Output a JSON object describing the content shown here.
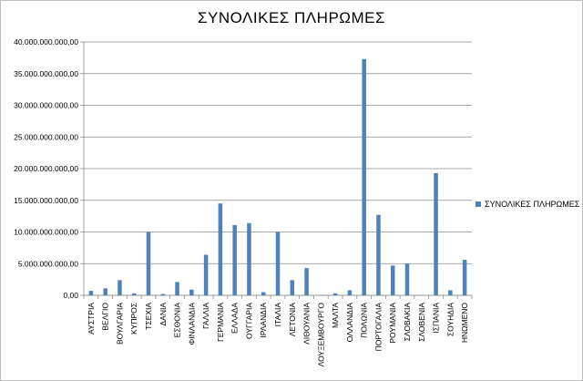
{
  "chart_data": {
    "type": "bar",
    "title": "ΣΥΝΟΛΙΚΕΣ ΠΛΗΡΩΜΕΣ",
    "xlabel": "",
    "ylabel": "",
    "ylim": [
      0,
      40000000000
    ],
    "yticks": [
      0,
      5000000000,
      10000000000,
      15000000000,
      20000000000,
      25000000000,
      30000000000,
      35000000000,
      40000000000
    ],
    "ytick_labels": [
      "0,00",
      "5.000.000.000,00",
      "10.000.000.000,00",
      "15.000.000.000,00",
      "20.000.000.000,00",
      "25.000.000.000,00",
      "30.000.000.000,00",
      "35.000.000.000,00",
      "40.000.000.000,00"
    ],
    "grid": true,
    "legend_position": "right",
    "categories": [
      "ΑΥΣΤΡΙΑ",
      "ΒΕΛΓΙΟ",
      "ΒΟΥΛΓΑΡΙΑ",
      "ΚΥΠΡΟΣ",
      "ΤΣΕΧΙΑ",
      "ΔΑΝΙΑ",
      "ΕΣΘΟΝΙΑ",
      "ΦΙΝΛΑΝΔΙΑ",
      "ΓΑΛΛΙΑ",
      "ΓΕΡΜΑΝΙΑ",
      "ΕΛΛΑΔΑ",
      "ΟΥΓΓΑΡΙΑ",
      "ΙΡΛΑΝΔΙΑ",
      "ΙΤΑΛΙΑ",
      "ΛΕΤΟΝΙΑ",
      "ΛΙΘΟΥΑΝΙΑ",
      "ΛΟΥΞΕΜΒΟΥΡΓΟ",
      "ΜΑΛΤΑ",
      "ΟΛΛΑΝΔΙΑ",
      "ΠΟΛΩΝΙΑ",
      "ΠΟΡΤΟΓΑΛΙΑ",
      "ΡΟΥΜΑΝΙΑ",
      "ΣΛΟΒΑΚΙΑ",
      "ΣΛΟΒΕΝΙΑ",
      "ΙΣΠΑΝΙΑ",
      "ΣΟΥΗΔΙΑ",
      "ΗΝΩΜΕΝΟ"
    ],
    "series": [
      {
        "name": "ΣΥΝΟΛΙΚΕΣ ΠΛΗΡΩΜΕΣ",
        "color": "#4f81bd",
        "values": [
          700000000,
          1100000000,
          2400000000,
          300000000,
          10000000000,
          200000000,
          2100000000,
          900000000,
          6400000000,
          14500000000,
          11100000000,
          11400000000,
          500000000,
          10000000000,
          2400000000,
          4300000000,
          50000000,
          300000000,
          800000000,
          37300000000,
          12700000000,
          4700000000,
          5000000000,
          0,
          19300000000,
          800000000,
          5600000000
        ]
      }
    ]
  }
}
